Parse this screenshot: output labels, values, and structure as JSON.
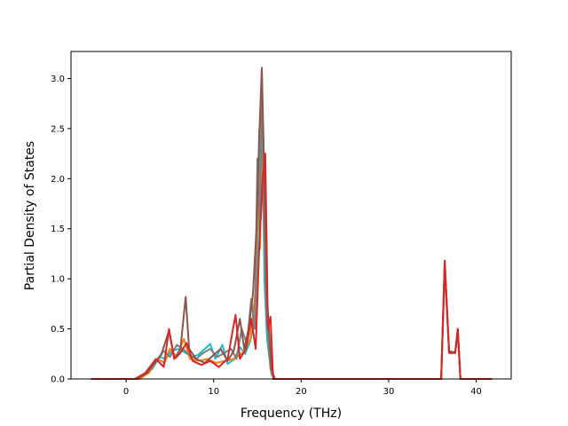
{
  "chart_data": {
    "type": "line",
    "title": "",
    "xlabel": "Frequency (THz)",
    "ylabel": "Partial Density of States",
    "xlim": [
      -6.3,
      44.0
    ],
    "ylim": [
      0.0,
      3.27
    ],
    "x_ticks": [
      0,
      10,
      20,
      30,
      40
    ],
    "x_tick_labels": [
      "0",
      "10",
      "20",
      "30",
      "40"
    ],
    "y_ticks": [
      0.0,
      0.5,
      1.0,
      1.5,
      2.0,
      2.5,
      3.0
    ],
    "y_tick_labels": [
      "0.0",
      "0.5",
      "1.0",
      "1.5",
      "2.0",
      "2.5",
      "3.0"
    ],
    "grid": false,
    "legend": "none",
    "series": [
      {
        "color": "#17becf",
        "points": [
          [
            -4,
            0
          ],
          [
            1,
            0
          ],
          [
            2,
            0.04
          ],
          [
            3,
            0.1
          ],
          [
            3.8,
            0.22
          ],
          [
            4.5,
            0.2
          ],
          [
            5.2,
            0.28
          ],
          [
            6,
            0.3
          ],
          [
            6.8,
            0.26
          ],
          [
            7.5,
            0.22
          ],
          [
            8.2,
            0.24
          ],
          [
            9,
            0.3
          ],
          [
            9.6,
            0.35
          ],
          [
            10.2,
            0.2
          ],
          [
            11,
            0.34
          ],
          [
            11.6,
            0.15
          ],
          [
            12.4,
            0.2
          ],
          [
            13,
            0.32
          ],
          [
            13.6,
            0.25
          ],
          [
            14.2,
            0.38
          ],
          [
            14.7,
            0.6
          ],
          [
            15,
            1.2
          ],
          [
            15.2,
            2.48
          ],
          [
            15.4,
            1.6
          ],
          [
            15.6,
            2.2
          ],
          [
            15.8,
            1.0
          ],
          [
            16.1,
            0.4
          ],
          [
            16.6,
            0.05
          ],
          [
            17,
            0
          ],
          [
            36,
            0
          ],
          [
            36.4,
            1.1
          ],
          [
            36.9,
            0.28
          ],
          [
            37.6,
            0.26
          ],
          [
            37.9,
            0.46
          ],
          [
            38.2,
            0
          ],
          [
            41.8,
            0
          ]
        ]
      },
      {
        "color": "#ff7f0e",
        "points": [
          [
            -4,
            0
          ],
          [
            1.5,
            0
          ],
          [
            2.6,
            0.06
          ],
          [
            3.6,
            0.2
          ],
          [
            4.4,
            0.16
          ],
          [
            5,
            0.3
          ],
          [
            5.8,
            0.22
          ],
          [
            6.6,
            0.4
          ],
          [
            7.3,
            0.2
          ],
          [
            8.3,
            0.18
          ],
          [
            9.3,
            0.2
          ],
          [
            10.3,
            0.16
          ],
          [
            11.3,
            0.18
          ],
          [
            12.3,
            0.2
          ],
          [
            13.3,
            0.26
          ],
          [
            14.2,
            0.4
          ],
          [
            14.8,
            0.9
          ],
          [
            15.1,
            2.1
          ],
          [
            15.3,
            1.3
          ],
          [
            15.5,
            2.3
          ],
          [
            15.8,
            1.4
          ],
          [
            16.1,
            0.6
          ],
          [
            16.5,
            0.1
          ],
          [
            16.9,
            0
          ],
          [
            36,
            0
          ],
          [
            36.4,
            1.12
          ],
          [
            36.9,
            0.27
          ],
          [
            37.6,
            0.27
          ],
          [
            37.9,
            0.48
          ],
          [
            38.2,
            0
          ],
          [
            41.8,
            0
          ]
        ]
      },
      {
        "color": "#7f7f7f",
        "points": [
          [
            -4,
            0
          ],
          [
            1,
            0
          ],
          [
            2.2,
            0.05
          ],
          [
            3.4,
            0.18
          ],
          [
            4.3,
            0.28
          ],
          [
            5,
            0.22
          ],
          [
            5.8,
            0.34
          ],
          [
            6.5,
            0.3
          ],
          [
            7.2,
            0.24
          ],
          [
            8,
            0.2
          ],
          [
            8.8,
            0.26
          ],
          [
            9.6,
            0.3
          ],
          [
            10.4,
            0.22
          ],
          [
            11.2,
            0.26
          ],
          [
            12,
            0.3
          ],
          [
            12.6,
            0.2
          ],
          [
            13.2,
            0.5
          ],
          [
            13.8,
            0.35
          ],
          [
            14.3,
            0.8
          ],
          [
            14.7,
            0.5
          ],
          [
            15,
            2.2
          ],
          [
            15.3,
            1.5
          ],
          [
            15.5,
            3.11
          ],
          [
            15.7,
            1.8
          ],
          [
            16,
            0.7
          ],
          [
            16.5,
            0.1
          ],
          [
            16.9,
            0
          ],
          [
            36,
            0
          ],
          [
            36.4,
            1.18
          ],
          [
            36.9,
            0.27
          ],
          [
            37.6,
            0.26
          ],
          [
            37.9,
            0.5
          ],
          [
            38.2,
            0
          ],
          [
            41.8,
            0
          ]
        ]
      },
      {
        "color": "#8c564b",
        "points": [
          [
            -4,
            0
          ],
          [
            1.2,
            0
          ],
          [
            2.4,
            0.06
          ],
          [
            3.2,
            0.15
          ],
          [
            4,
            0.24
          ],
          [
            4.9,
            0.48
          ],
          [
            5.5,
            0.2
          ],
          [
            6.2,
            0.3
          ],
          [
            6.8,
            0.82
          ],
          [
            7.2,
            0.3
          ],
          [
            8,
            0.2
          ],
          [
            9,
            0.16
          ],
          [
            10,
            0.24
          ],
          [
            10.8,
            0.3
          ],
          [
            11.6,
            0.18
          ],
          [
            12.3,
            0.28
          ],
          [
            13,
            0.6
          ],
          [
            13.5,
            0.3
          ],
          [
            14,
            0.5
          ],
          [
            14.5,
            0.86
          ],
          [
            14.9,
            1.5
          ],
          [
            15.2,
            2.4
          ],
          [
            15.5,
            3.1
          ],
          [
            15.8,
            2.0
          ],
          [
            16.1,
            0.8
          ],
          [
            16.6,
            0.1
          ],
          [
            17,
            0
          ],
          [
            36,
            0
          ],
          [
            36.4,
            1.16
          ],
          [
            36.9,
            0.28
          ],
          [
            37.6,
            0.26
          ],
          [
            37.9,
            0.5
          ],
          [
            38.2,
            0
          ],
          [
            41.8,
            0
          ]
        ]
      },
      {
        "color": "#d62728",
        "points": [
          [
            -4,
            0
          ],
          [
            1,
            0
          ],
          [
            2.2,
            0.06
          ],
          [
            3.4,
            0.2
          ],
          [
            4.3,
            0.12
          ],
          [
            4.9,
            0.5
          ],
          [
            5.5,
            0.2
          ],
          [
            6.2,
            0.26
          ],
          [
            6.9,
            0.36
          ],
          [
            7.6,
            0.18
          ],
          [
            8.6,
            0.14
          ],
          [
            9.6,
            0.18
          ],
          [
            10.6,
            0.12
          ],
          [
            11.6,
            0.2
          ],
          [
            12.5,
            0.64
          ],
          [
            13,
            0.2
          ],
          [
            13.7,
            0.3
          ],
          [
            14.3,
            0.6
          ],
          [
            14.8,
            0.3
          ],
          [
            15.2,
            1.3
          ],
          [
            15.6,
            2.0
          ],
          [
            15.9,
            2.25
          ],
          [
            16.2,
            0.5
          ],
          [
            16.5,
            0.62
          ],
          [
            16.8,
            0
          ],
          [
            36,
            0
          ],
          [
            36.4,
            1.18
          ],
          [
            36.9,
            0.26
          ],
          [
            37.6,
            0.26
          ],
          [
            37.9,
            0.5
          ],
          [
            38.2,
            0
          ],
          [
            41.8,
            0
          ]
        ]
      }
    ]
  }
}
